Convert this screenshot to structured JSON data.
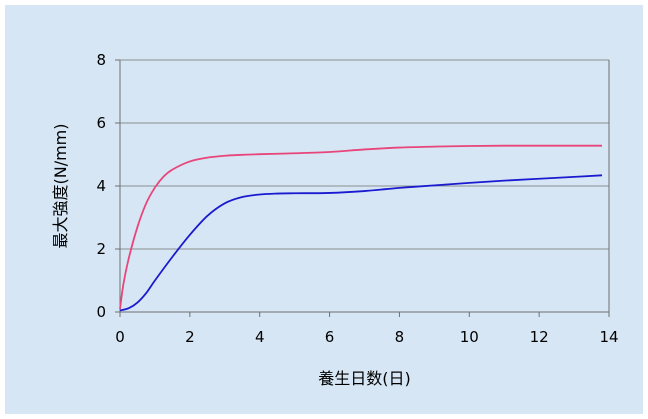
{
  "chart_data": {
    "type": "line",
    "title": "",
    "xlabel": "養生日数(日)",
    "ylabel": "最大強度(N/mm)",
    "xlim": [
      0,
      14
    ],
    "ylim": [
      0,
      8
    ],
    "xticks": [
      0,
      2,
      4,
      6,
      8,
      10,
      12,
      14
    ],
    "yticks": [
      0,
      2,
      4,
      6,
      8
    ],
    "grid": "horizontal",
    "legend": "none",
    "series": [
      {
        "color": "#e8457a",
        "x": [
          0,
          0.1,
          0.25,
          0.5,
          0.75,
          1.0,
          1.25,
          1.5,
          2.0,
          2.5,
          3.0,
          3.5,
          4.0,
          5.0,
          6.0,
          7.0,
          8.0,
          9.0,
          10.0,
          11.0,
          12.0,
          13.0,
          13.8
        ],
        "y": [
          0.1,
          0.9,
          1.7,
          2.7,
          3.45,
          3.95,
          4.3,
          4.52,
          4.78,
          4.9,
          4.96,
          4.99,
          5.01,
          5.04,
          5.08,
          5.16,
          5.22,
          5.25,
          5.27,
          5.28,
          5.28,
          5.28,
          5.28
        ]
      },
      {
        "color": "#1a1ad0",
        "x": [
          0,
          0.25,
          0.5,
          0.75,
          1.0,
          1.5,
          2.0,
          2.5,
          3.0,
          3.5,
          4.0,
          4.5,
          5.0,
          6.0,
          7.0,
          8.0,
          9.0,
          10.0,
          11.0,
          12.0,
          13.0,
          13.8
        ],
        "y": [
          0.05,
          0.12,
          0.3,
          0.6,
          1.0,
          1.75,
          2.45,
          3.05,
          3.45,
          3.65,
          3.73,
          3.76,
          3.77,
          3.78,
          3.84,
          3.94,
          4.02,
          4.1,
          4.17,
          4.23,
          4.29,
          4.34
        ]
      }
    ]
  }
}
